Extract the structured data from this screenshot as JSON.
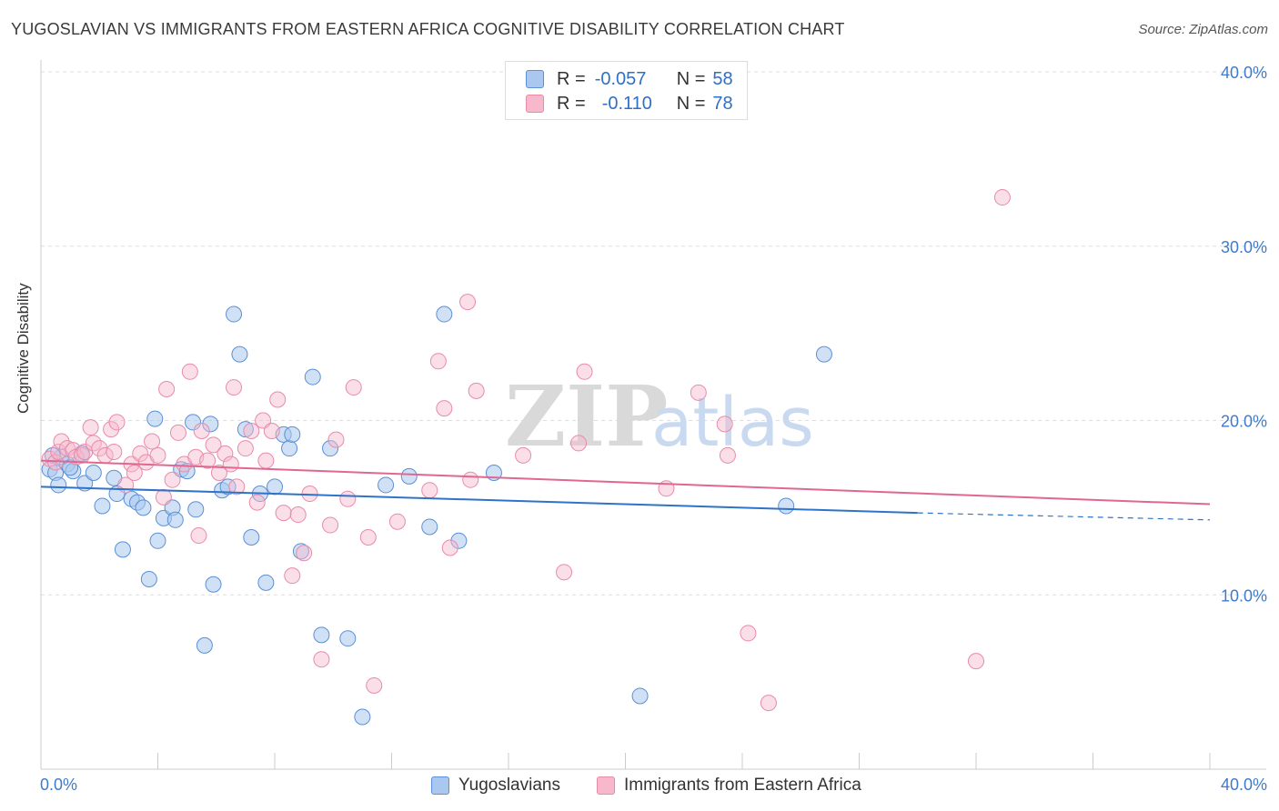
{
  "title": "YUGOSLAVIAN VS IMMIGRANTS FROM EASTERN AFRICA COGNITIVE DISABILITY CORRELATION CHART",
  "source": "Source: ZipAtlas.com",
  "watermark": {
    "zip": "ZIP",
    "atlas": "atlas"
  },
  "legend": {
    "rows": [
      {
        "r_label": "R =",
        "r_value": "-0.057",
        "n_label": "N =",
        "n_value": "58"
      },
      {
        "r_label": "R =",
        "r_value": "-0.110",
        "n_label": "N =",
        "n_value": "78"
      }
    ]
  },
  "bottom_legend": [
    "Yugoslavians",
    "Immigrants from Eastern Africa"
  ],
  "colors": {
    "blue_fill": "#aac8ef",
    "blue_stroke": "#5b8fd6",
    "blue_line": "#2f73c9",
    "pink_fill": "#f7b8cb",
    "pink_stroke": "#e88ba8",
    "pink_line": "#e0688f",
    "tick_label": "#3f7acc",
    "grid": "#dddddd"
  },
  "chart_data": {
    "type": "scatter",
    "title": "YUGOSLAVIAN VS IMMIGRANTS FROM EASTERN AFRICA COGNITIVE DISABILITY CORRELATION CHART",
    "xlabel": "",
    "ylabel": "Cognitive Disability",
    "xlim": [
      0,
      40
    ],
    "ylim": [
      0,
      40
    ],
    "x_tick_labels": [
      "0.0%",
      "40.0%"
    ],
    "y_ticks": [
      10,
      20,
      30,
      40
    ],
    "y_tick_labels": [
      "10.0%",
      "20.0%",
      "30.0%",
      "40.0%"
    ],
    "grid": true,
    "legend_position": "top-center",
    "series": [
      {
        "name": "Yugoslavians",
        "r": -0.057,
        "n": 58,
        "trend": {
          "x0": 0,
          "y0": 16.2,
          "x1": 30,
          "y1": 14.7,
          "dashed_to_x": 40,
          "dashed_to_y": 14.3
        },
        "points": [
          [
            0.3,
            17.2
          ],
          [
            0.5,
            17.0
          ],
          [
            0.6,
            16.3
          ],
          [
            0.9,
            17.5
          ],
          [
            1.1,
            17.1
          ],
          [
            1.4,
            18.1
          ],
          [
            1.5,
            16.4
          ],
          [
            1.8,
            17.0
          ],
          [
            2.1,
            15.1
          ],
          [
            2.5,
            16.7
          ],
          [
            2.6,
            15.8
          ],
          [
            2.8,
            12.6
          ],
          [
            3.1,
            15.5
          ],
          [
            3.3,
            15.3
          ],
          [
            3.5,
            15.0
          ],
          [
            3.7,
            10.9
          ],
          [
            3.9,
            20.1
          ],
          [
            4.0,
            13.1
          ],
          [
            4.2,
            14.4
          ],
          [
            4.5,
            15.0
          ],
          [
            4.6,
            14.3
          ],
          [
            4.8,
            17.2
          ],
          [
            5.0,
            17.1
          ],
          [
            5.2,
            19.9
          ],
          [
            5.3,
            14.9
          ],
          [
            5.6,
            7.1
          ],
          [
            5.8,
            19.8
          ],
          [
            5.9,
            10.6
          ],
          [
            6.2,
            16.0
          ],
          [
            6.4,
            16.2
          ],
          [
            6.6,
            26.1
          ],
          [
            6.8,
            23.8
          ],
          [
            7.0,
            19.5
          ],
          [
            7.2,
            13.3
          ],
          [
            7.5,
            15.8
          ],
          [
            7.7,
            10.7
          ],
          [
            8.0,
            16.2
          ],
          [
            8.3,
            19.2
          ],
          [
            8.5,
            18.4
          ],
          [
            8.6,
            19.2
          ],
          [
            8.9,
            12.5
          ],
          [
            9.3,
            22.5
          ],
          [
            9.6,
            7.7
          ],
          [
            9.9,
            18.4
          ],
          [
            10.5,
            7.5
          ],
          [
            11.0,
            3.0
          ],
          [
            11.8,
            16.3
          ],
          [
            12.6,
            16.8
          ],
          [
            13.3,
            13.9
          ],
          [
            13.8,
            26.1
          ],
          [
            14.3,
            13.1
          ],
          [
            15.5,
            17.0
          ],
          [
            20.5,
            4.2
          ],
          [
            25.5,
            15.1
          ],
          [
            26.8,
            23.8
          ],
          [
            0.7,
            17.9
          ],
          [
            0.4,
            18.0
          ],
          [
            1.0,
            17.3
          ]
        ]
      },
      {
        "name": "Immigrants from Eastern Africa",
        "r": -0.11,
        "n": 78,
        "trend": {
          "x0": 0,
          "y0": 17.7,
          "x1": 40,
          "y1": 15.2
        },
        "points": [
          [
            0.3,
            17.8
          ],
          [
            0.5,
            17.6
          ],
          [
            0.6,
            18.2
          ],
          [
            0.7,
            18.8
          ],
          [
            0.9,
            18.4
          ],
          [
            1.1,
            18.3
          ],
          [
            1.2,
            17.9
          ],
          [
            1.4,
            18.0
          ],
          [
            1.5,
            18.2
          ],
          [
            1.7,
            19.6
          ],
          [
            1.8,
            18.7
          ],
          [
            2.0,
            18.4
          ],
          [
            2.2,
            18.0
          ],
          [
            2.4,
            19.5
          ],
          [
            2.5,
            18.2
          ],
          [
            2.6,
            19.9
          ],
          [
            2.9,
            16.3
          ],
          [
            3.1,
            17.5
          ],
          [
            3.2,
            17.0
          ],
          [
            3.4,
            18.1
          ],
          [
            3.6,
            17.6
          ],
          [
            3.8,
            18.8
          ],
          [
            4.0,
            18.0
          ],
          [
            4.2,
            15.6
          ],
          [
            4.3,
            21.8
          ],
          [
            4.5,
            16.6
          ],
          [
            4.7,
            19.3
          ],
          [
            4.9,
            17.5
          ],
          [
            5.1,
            22.8
          ],
          [
            5.3,
            17.9
          ],
          [
            5.4,
            13.4
          ],
          [
            5.5,
            19.4
          ],
          [
            5.7,
            17.7
          ],
          [
            5.9,
            18.6
          ],
          [
            6.1,
            17.0
          ],
          [
            6.3,
            18.1
          ],
          [
            6.5,
            17.5
          ],
          [
            6.6,
            21.9
          ],
          [
            6.7,
            16.2
          ],
          [
            7.0,
            18.4
          ],
          [
            7.2,
            19.4
          ],
          [
            7.4,
            15.3
          ],
          [
            7.6,
            20.0
          ],
          [
            7.7,
            17.7
          ],
          [
            7.9,
            19.4
          ],
          [
            8.1,
            21.2
          ],
          [
            8.3,
            14.7
          ],
          [
            8.6,
            11.1
          ],
          [
            8.8,
            14.6
          ],
          [
            9.0,
            12.4
          ],
          [
            9.2,
            15.8
          ],
          [
            9.6,
            6.3
          ],
          [
            9.9,
            14.0
          ],
          [
            10.1,
            18.9
          ],
          [
            10.5,
            15.5
          ],
          [
            10.7,
            21.9
          ],
          [
            11.2,
            13.3
          ],
          [
            11.4,
            4.8
          ],
          [
            12.2,
            14.2
          ],
          [
            13.3,
            16.0
          ],
          [
            13.6,
            23.4
          ],
          [
            13.8,
            20.7
          ],
          [
            14.0,
            12.7
          ],
          [
            14.6,
            26.8
          ],
          [
            14.7,
            16.6
          ],
          [
            14.9,
            21.7
          ],
          [
            16.5,
            18.0
          ],
          [
            17.9,
            11.3
          ],
          [
            18.4,
            18.7
          ],
          [
            18.6,
            22.8
          ],
          [
            21.4,
            16.1
          ],
          [
            22.5,
            21.6
          ],
          [
            23.4,
            19.8
          ],
          [
            23.5,
            18.0
          ],
          [
            24.2,
            7.8
          ],
          [
            24.9,
            3.8
          ],
          [
            32.0,
            6.2
          ],
          [
            32.9,
            32.8
          ]
        ]
      }
    ]
  }
}
